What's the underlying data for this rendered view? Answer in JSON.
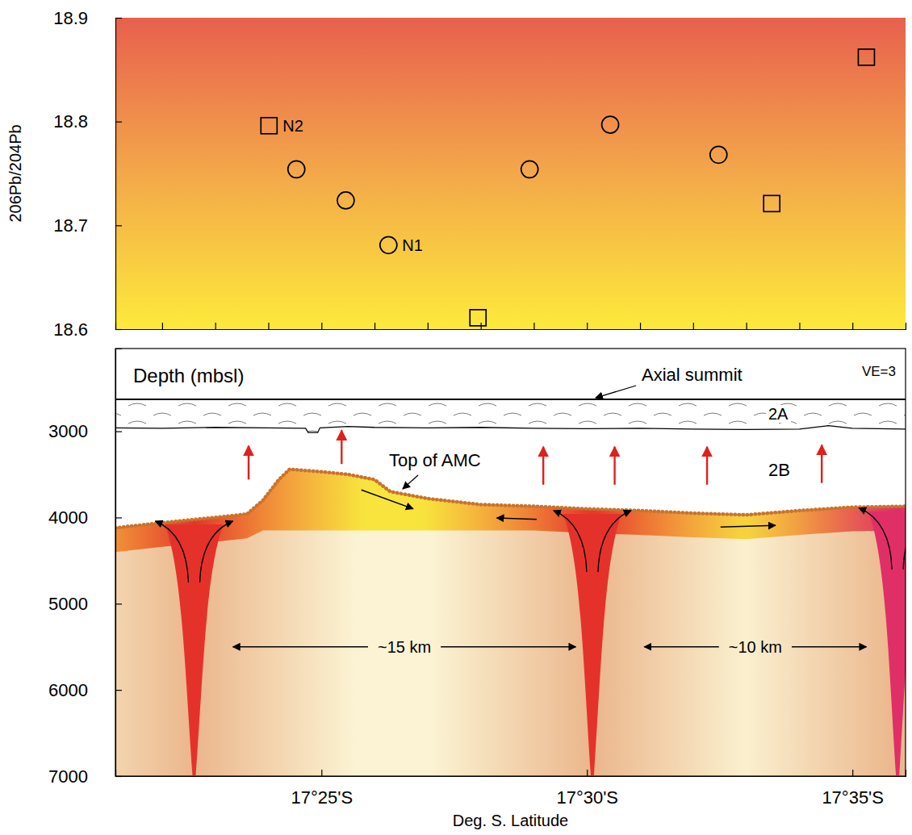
{
  "chart_data": [
    {
      "type": "scatter",
      "ylabel": "206Pb/204Pb",
      "xlim": [
        17.352,
        17.6
      ],
      "xticks": [
        17.36667,
        17.38333,
        17.4,
        17.41667,
        17.43333,
        17.45,
        17.46667,
        17.48333,
        17.5,
        17.51667,
        17.53333,
        17.55,
        17.56667,
        17.58333
      ],
      "ylim": [
        18.6,
        18.9
      ],
      "yticks": [
        18.6,
        18.7,
        18.8,
        18.9
      ],
      "tick_labels": "y",
      "series": [
        {
          "marker": "square",
          "color": "#000000",
          "x": [
            17.4002,
            17.4658,
            17.558,
            17.5877
          ],
          "values": [
            18.796,
            18.611,
            18.721,
            18.862
          ],
          "labels": [
            "N2",
            null,
            null,
            null
          ]
        },
        {
          "marker": "circle",
          "color": "#000000",
          "x": [
            17.4088,
            17.4243,
            17.4377,
            17.482,
            17.5073,
            17.5413
          ],
          "values": [
            18.754,
            18.724,
            18.681,
            18.754,
            18.797,
            18.768
          ],
          "labels": [
            null,
            null,
            "N1",
            null,
            null,
            null
          ]
        }
      ]
    },
    {
      "type": "profile",
      "ylabel": "Depth (mbsl)",
      "xlabel": "Deg. S. Latitude",
      "xlim": [
        17.352,
        17.6
      ],
      "xticks": [
        {
          "value": 17.41667,
          "label": "17°25'S"
        },
        {
          "value": 17.5,
          "label": "17°30'S"
        },
        {
          "value": 17.58333,
          "label": "17°35'S"
        }
      ],
      "ylim": [
        7000,
        2040
      ],
      "yticks": [
        3000,
        4000,
        5000,
        6000,
        7000
      ],
      "series": [
        {
          "type": "line",
          "color": "#000000",
          "line_style": "solid",
          "x": [
            17.352,
            17.6
          ],
          "values": [
            2630,
            2630
          ]
        },
        {
          "type": "line",
          "color": "#000000",
          "line_style": "solid",
          "x": [
            17.352,
            17.3667,
            17.3833,
            17.4,
            17.4117,
            17.4125,
            17.4155,
            17.4162,
            17.425,
            17.4333,
            17.45,
            17.4667,
            17.4833,
            17.5,
            17.5167,
            17.5333,
            17.55,
            17.5667,
            17.5758,
            17.5833,
            17.6
          ],
          "values": [
            2960,
            2965,
            2955,
            2960,
            2965,
            3015,
            3015,
            2960,
            2945,
            2955,
            2960,
            2955,
            2965,
            2970,
            2965,
            2975,
            2980,
            2975,
            2935,
            2965,
            2975
          ]
        },
        {
          "type": "line",
          "color": "#c8742c",
          "line_style": "dotted",
          "x": [
            17.352,
            17.3667,
            17.3833,
            17.3933,
            17.3983,
            17.4033,
            17.4067,
            17.4167,
            17.425,
            17.4333,
            17.4383,
            17.45,
            17.4667,
            17.4833,
            17.5,
            17.5167,
            17.5333,
            17.55,
            17.5667,
            17.5833,
            17.6
          ],
          "values": [
            4120,
            4060,
            4000,
            3960,
            3800,
            3560,
            3440,
            3470,
            3500,
            3560,
            3700,
            3780,
            3850,
            3870,
            3900,
            3920,
            3950,
            3970,
            3920,
            3880,
            3870
          ]
        }
      ],
      "conduits": [
        17.3767,
        17.5017,
        17.5975
      ],
      "upwelling": {
        "x": [
          17.3938,
          17.423,
          17.4863,
          17.5087,
          17.5377,
          17.5737
        ],
        "from": [
          3560,
          3380,
          3620,
          3620,
          3620,
          3600
        ],
        "to": [
          3170,
          2990,
          3180,
          3180,
          3180,
          3160
        ]
      },
      "spans": [
        {
          "label": "~15 km",
          "x": [
            17.3889,
            17.4965
          ],
          "y": 5500
        },
        {
          "label": "~10 km",
          "x": [
            17.518,
            17.5877
          ],
          "y": 5500
        }
      ],
      "annotations": [
        "Axial summit",
        "VE=3",
        "2A",
        "2B",
        "Top of AMC"
      ]
    }
  ]
}
